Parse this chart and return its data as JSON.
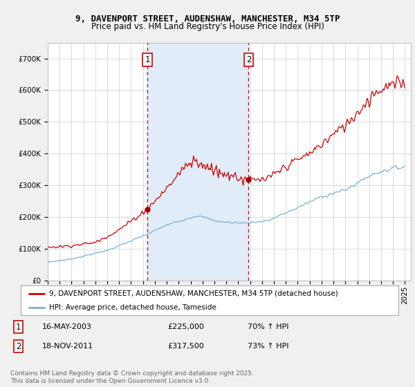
{
  "title": "9, DAVENPORT STREET, AUDENSHAW, MANCHESTER, M34 5TP",
  "subtitle": "Price paid vs. HM Land Registry's House Price Index (HPI)",
  "ylim": [
    0,
    750000
  ],
  "yticks": [
    0,
    100000,
    200000,
    300000,
    400000,
    500000,
    600000,
    700000
  ],
  "ytick_labels": [
    "£0",
    "£100K",
    "£200K",
    "£300K",
    "£400K",
    "£500K",
    "£600K",
    "£700K"
  ],
  "sale1_year": 2003.37,
  "sale1_price": 225000,
  "sale2_year": 2011.87,
  "sale2_price": 317500,
  "line_red_color": "#cc0000",
  "line_blue_color": "#7bafd4",
  "shade_color": "#e0ecf8",
  "marker_box_color": "#cc0000",
  "legend_label_red": "9, DAVENPORT STREET, AUDENSHAW, MANCHESTER, M34 5TP (detached house)",
  "legend_label_blue": "HPI: Average price, detached house, Tameside",
  "footer": "Contains HM Land Registry data © Crown copyright and database right 2025.\nThis data is licensed under the Open Government Licence v3.0.",
  "background_color": "#f0f0f0",
  "plot_bg_color": "#ffffff",
  "title_fontsize": 9,
  "subtitle_fontsize": 8.5,
  "tick_fontsize": 7.5,
  "legend_fontsize": 7.5,
  "annotation_fontsize": 8,
  "footer_fontsize": 6.5
}
